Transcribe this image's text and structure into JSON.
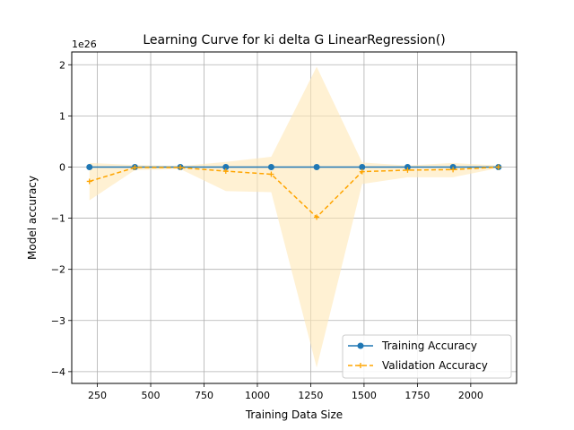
{
  "chart_data": {
    "type": "line",
    "title": "Learning Curve for ki delta G LinearRegression()",
    "xlabel": "Training Data Size",
    "ylabel": "Model accuracy",
    "y_offset_label": "1e26",
    "x": [
      213,
      426,
      639,
      852,
      1065,
      1278,
      1491,
      1704,
      1917,
      2130
    ],
    "xlim": [
      130,
      2215
    ],
    "ylim": [
      -4.23,
      2.25
    ],
    "y_scale": 1e+26,
    "x_ticks": [
      250,
      500,
      750,
      1000,
      1250,
      1500,
      1750,
      2000
    ],
    "y_ticks": [
      -4,
      -3,
      -2,
      -1,
      0,
      1,
      2
    ],
    "grid": true,
    "legend_placement": "lower-right",
    "series": [
      {
        "name": "Training Accuracy",
        "color": "#1f77b4",
        "marker": "circle",
        "line_style": "solid",
        "values": [
          0,
          0,
          0,
          0,
          0,
          0,
          0,
          0,
          0,
          0
        ]
      },
      {
        "name": "Validation Accuracy",
        "color": "#ffa500",
        "marker": "plus",
        "line_style": "dashed",
        "values": [
          -0.28,
          -0.01,
          -0.01,
          -0.08,
          -0.14,
          -0.98,
          -0.09,
          -0.06,
          -0.05,
          0.0
        ],
        "band_lower": [
          -0.65,
          -0.06,
          -0.04,
          -0.47,
          -0.49,
          -3.92,
          -0.33,
          -0.2,
          -0.2,
          -0.02
        ],
        "band_upper": [
          0.08,
          0.04,
          0.02,
          0.1,
          0.2,
          1.96,
          0.09,
          0.03,
          0.08,
          0.03
        ],
        "band_color": "#ffe8b5"
      }
    ]
  }
}
